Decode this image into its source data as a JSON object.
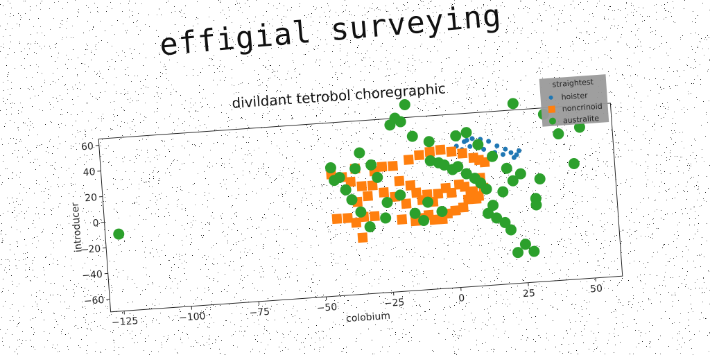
{
  "chart_data": {
    "type": "scatter",
    "title": "effigial surveying",
    "subtitle": "divildant tetrobol choregraphic",
    "xlabel": "colobium",
    "ylabel": "introducer",
    "xlim": [
      -130,
      60
    ],
    "ylim": [
      -70,
      65
    ],
    "xticks": [
      -125,
      -100,
      -75,
      -50,
      -25,
      0,
      25,
      50
    ],
    "yticks": [
      -60,
      -40,
      -20,
      0,
      20,
      40,
      60
    ],
    "legend_title": "straightest",
    "legend_position": "top-right",
    "series": [
      {
        "name": "hoister",
        "color": "#1f77b4",
        "marker": "circle-small",
        "points": [
          [
            2,
            40
          ],
          [
            5,
            43
          ],
          [
            8,
            45
          ],
          [
            11,
            44
          ],
          [
            14,
            42
          ],
          [
            17,
            38
          ],
          [
            20,
            35
          ],
          [
            22,
            32
          ],
          [
            24,
            30
          ],
          [
            4,
            37
          ],
          [
            7,
            39
          ],
          [
            10,
            41
          ],
          [
            12,
            36
          ],
          [
            16,
            33
          ],
          [
            19,
            31
          ],
          [
            23,
            28
          ],
          [
            25,
            33
          ],
          [
            6,
            44
          ]
        ]
      },
      {
        "name": "noncrinoid",
        "color": "#ff7f0e",
        "marker": "square",
        "points": [
          [
            -45,
            25
          ],
          [
            -41,
            22
          ],
          [
            -38,
            18
          ],
          [
            -36,
            28
          ],
          [
            -34,
            14
          ],
          [
            -32,
            6
          ],
          [
            -29,
            25
          ],
          [
            -26,
            28
          ],
          [
            -22,
            28
          ],
          [
            -20,
            16
          ],
          [
            -16,
            12
          ],
          [
            -14,
            6
          ],
          [
            -12,
            0
          ],
          [
            -10,
            4
          ],
          [
            -8,
            -2
          ],
          [
            -6,
            4
          ],
          [
            -3,
            8
          ],
          [
            -1,
            4
          ],
          [
            2,
            10
          ],
          [
            4,
            8
          ],
          [
            6,
            2
          ],
          [
            8,
            -2
          ],
          [
            10,
            14
          ],
          [
            -36,
            2
          ],
          [
            -34,
            -10
          ],
          [
            -37,
            -14
          ],
          [
            -44,
            -10
          ],
          [
            -40,
            -10
          ],
          [
            -30,
            -10
          ],
          [
            -20,
            -14
          ],
          [
            -15,
            -16
          ],
          [
            -12,
            -14
          ],
          [
            -10,
            -12
          ],
          [
            -8,
            -16
          ],
          [
            -5,
            -16
          ],
          [
            -3,
            -12
          ],
          [
            0,
            -10
          ],
          [
            3,
            -8
          ],
          [
            5,
            -2
          ],
          [
            7,
            4
          ],
          [
            9,
            0
          ],
          [
            11,
            6
          ],
          [
            -18,
            -2
          ],
          [
            -22,
            4
          ],
          [
            -26,
            8
          ],
          [
            -30,
            14
          ],
          [
            -35,
            -26
          ],
          [
            -16,
            32
          ],
          [
            -12,
            35
          ],
          [
            -8,
            37
          ],
          [
            -4,
            38
          ],
          [
            0,
            36
          ],
          [
            4,
            34
          ],
          [
            8,
            30
          ],
          [
            10,
            28
          ],
          [
            12,
            26
          ]
        ]
      },
      {
        "name": "australite",
        "color": "#2ca02c",
        "marker": "circle",
        "points": [
          [
            -125,
            -10
          ],
          [
            -45,
            30
          ],
          [
            -42,
            22
          ],
          [
            -40,
            12
          ],
          [
            -38,
            4
          ],
          [
            -35,
            -6
          ],
          [
            -34,
            40
          ],
          [
            -32,
            -18
          ],
          [
            -30,
            30
          ],
          [
            -28,
            20
          ],
          [
            -26,
            -12
          ],
          [
            -25,
            0
          ],
          [
            -22,
            60
          ],
          [
            -20,
            65
          ],
          [
            -18,
            62
          ],
          [
            -16,
            75
          ],
          [
            -14,
            50
          ],
          [
            -12,
            -16
          ],
          [
            -10,
            -2
          ],
          [
            -8,
            30
          ],
          [
            -5,
            28
          ],
          [
            -3,
            26
          ],
          [
            0,
            22
          ],
          [
            2,
            24
          ],
          [
            5,
            18
          ],
          [
            8,
            14
          ],
          [
            10,
            10
          ],
          [
            12,
            -14
          ],
          [
            15,
            -18
          ],
          [
            18,
            -22
          ],
          [
            20,
            -28
          ],
          [
            22,
            -46
          ],
          [
            25,
            -40
          ],
          [
            28,
            -46
          ],
          [
            30,
            -10
          ],
          [
            32,
            10
          ],
          [
            35,
            60
          ],
          [
            40,
            44
          ],
          [
            45,
            20
          ],
          [
            48,
            48
          ],
          [
            10,
            40
          ],
          [
            15,
            30
          ],
          [
            20,
            20
          ],
          [
            25,
            15
          ],
          [
            30,
            -5
          ],
          [
            -15,
            -10
          ],
          [
            -20,
            5
          ],
          [
            -5,
            -10
          ],
          [
            12,
            5
          ],
          [
            18,
            2
          ],
          [
            22,
            10
          ],
          [
            -36,
            28
          ],
          [
            -44,
            20
          ],
          [
            6,
            50
          ],
          [
            24,
            70
          ],
          [
            2,
            48
          ],
          [
            14,
            -8
          ],
          [
            -8,
            45
          ]
        ]
      }
    ]
  }
}
